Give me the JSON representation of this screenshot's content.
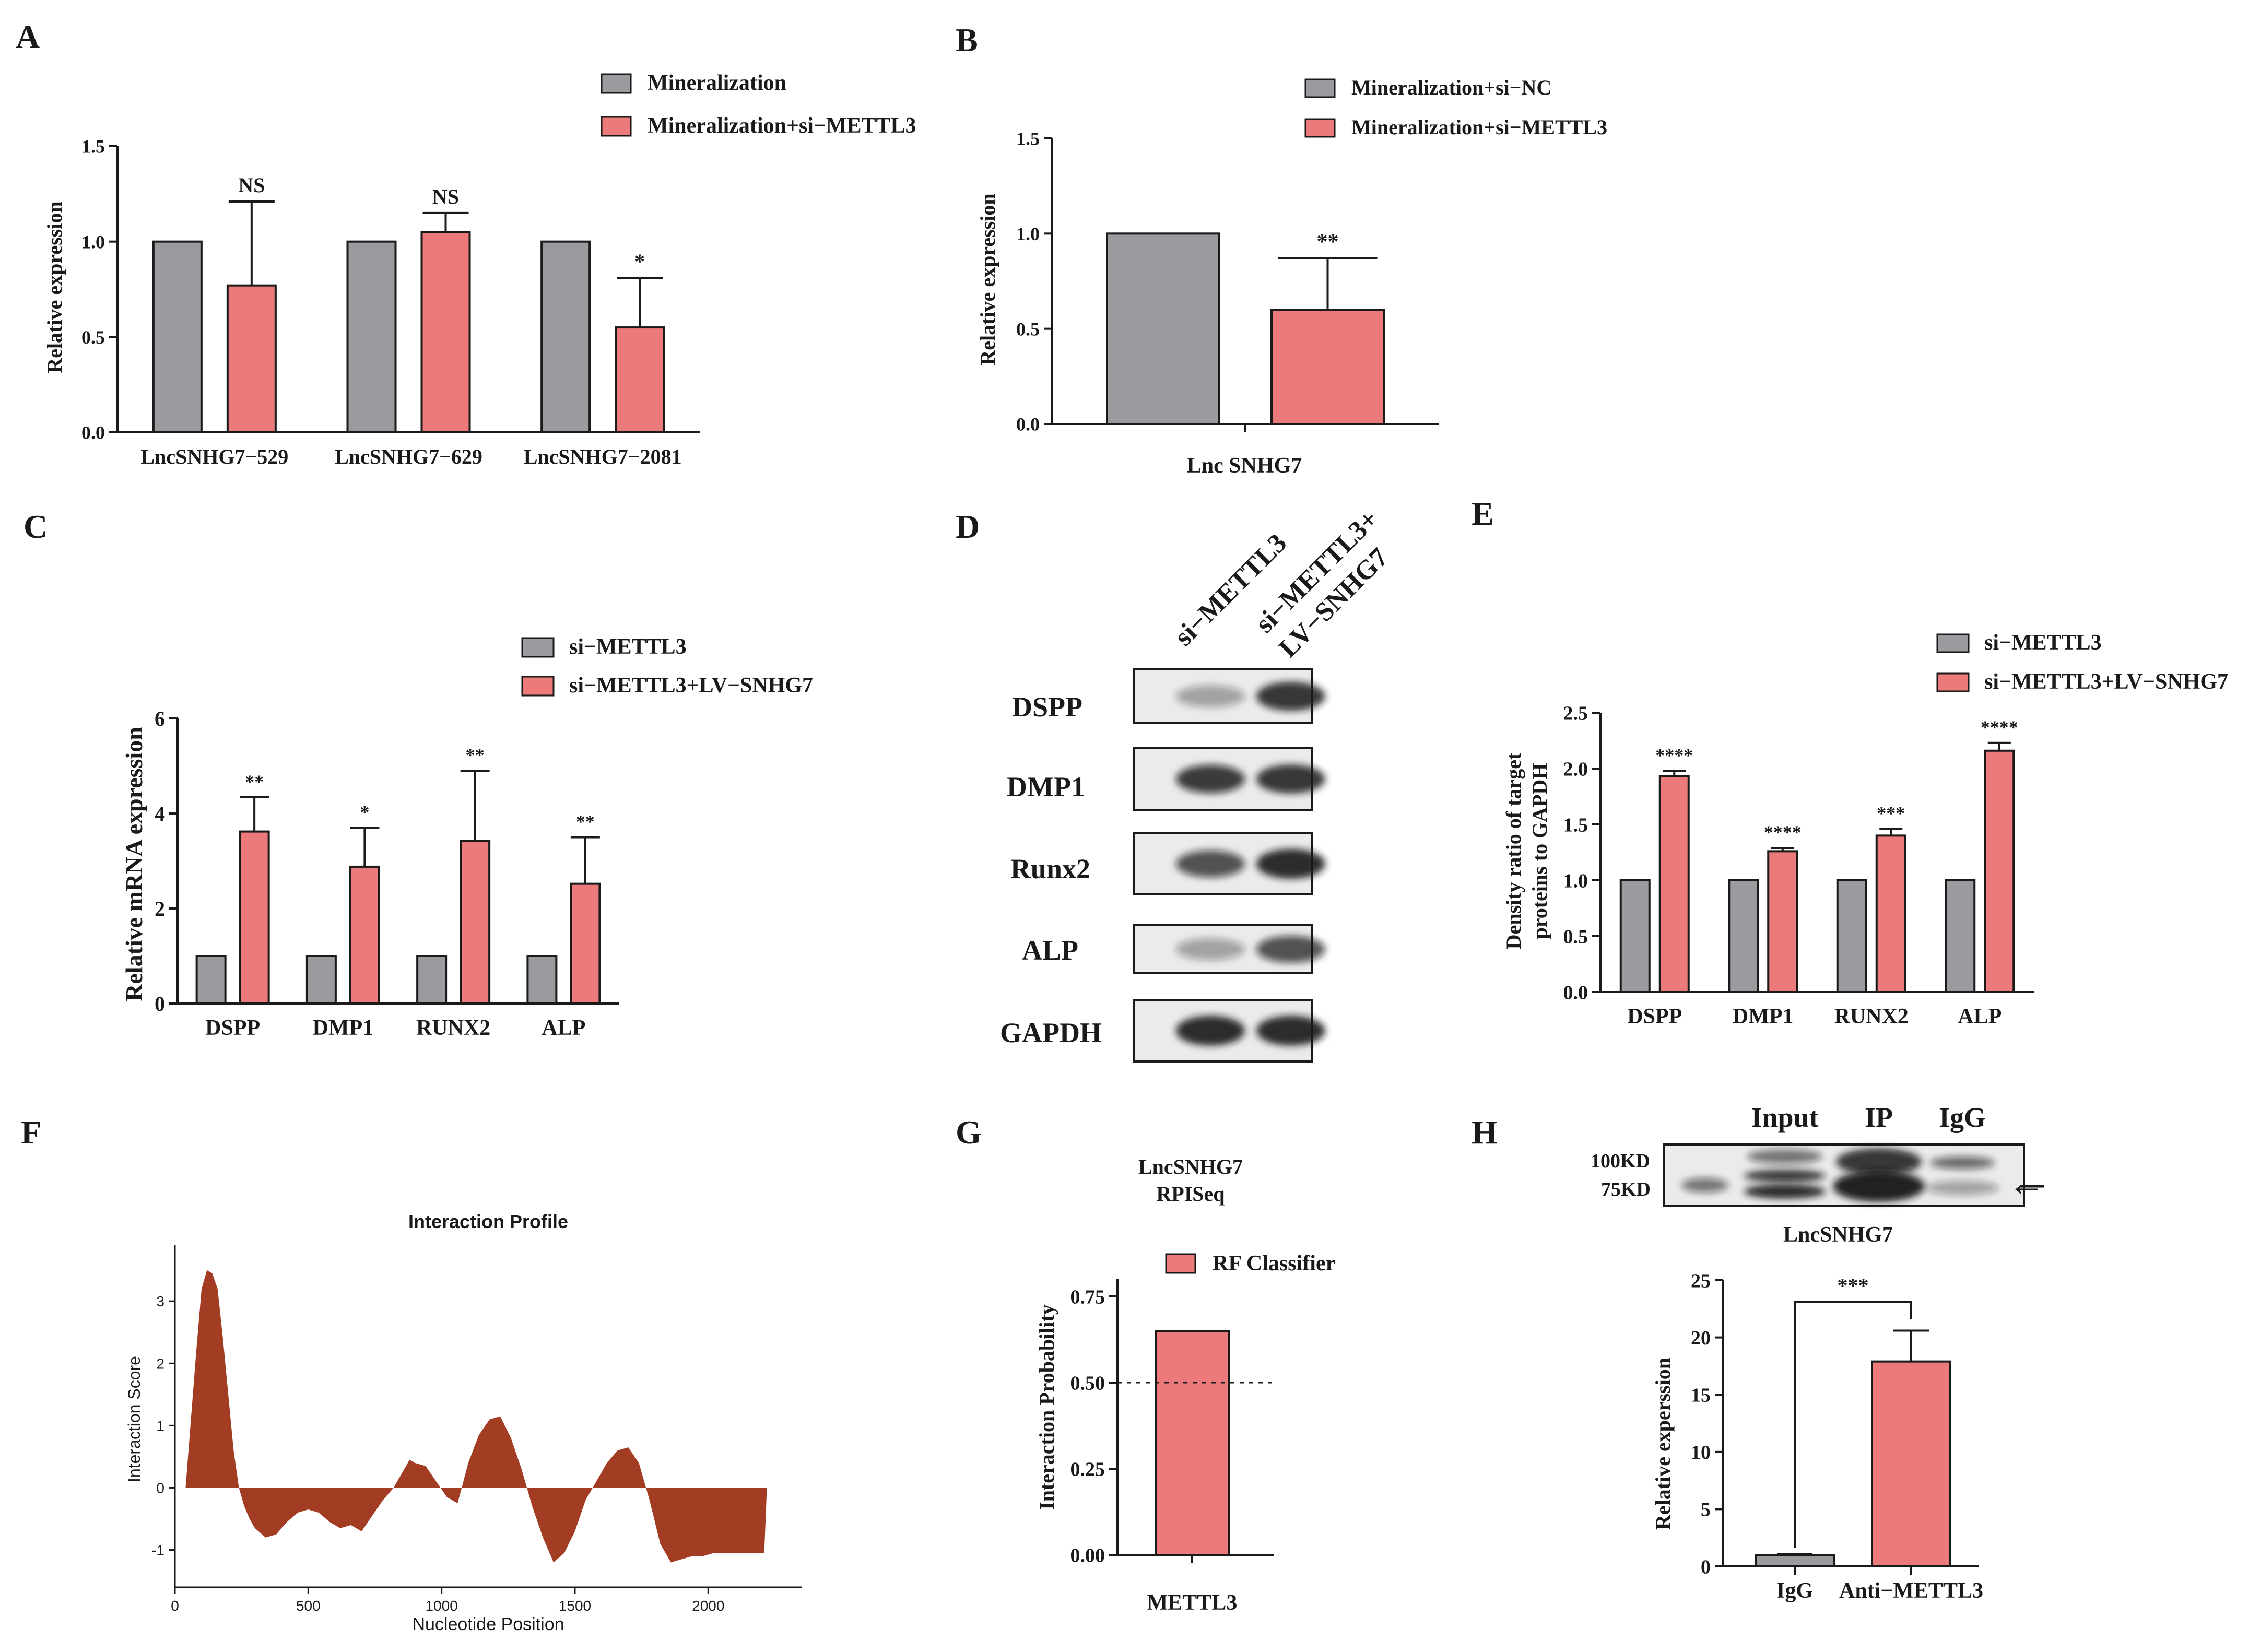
{
  "colors": {
    "gray": "#9a9a9f",
    "red": "#ec7a7b",
    "profile": "#a23c22",
    "axis": "#1a1a1a"
  },
  "panel_letters": {
    "A": "A",
    "B": "B",
    "C": "C",
    "D": "D",
    "E": "E",
    "F": "F",
    "G": "G",
    "H": "H"
  },
  "chart_data": [
    {
      "id": "A",
      "type": "bar",
      "categories": [
        "LncSNHG7−529",
        "LncSNHG7−629",
        "LncSNHG7−2081"
      ],
      "series": [
        {
          "name": "Mineralization",
          "color": "#9a9a9f",
          "values": [
            1.0,
            1.0,
            1.0
          ],
          "errors": [
            null,
            null,
            null
          ]
        },
        {
          "name": "Mineralization+si−METTL3",
          "color": "#ec7a7b",
          "values": [
            0.77,
            1.05,
            0.55
          ],
          "errors": [
            0.44,
            0.1,
            0.26
          ]
        }
      ],
      "significance": [
        "NS",
        "NS",
        "*"
      ],
      "ylabel": "Relative expression",
      "xlabel": "",
      "ylim": [
        0,
        1.5
      ],
      "yticks": [
        0.0,
        0.5,
        1.0,
        1.5
      ],
      "ytick_labels": [
        "0.0",
        "0.5",
        "1.0",
        "1.5"
      ],
      "legend": "top-right",
      "grid": false
    },
    {
      "id": "B",
      "type": "bar",
      "categories": [
        ""
      ],
      "series": [
        {
          "name": "Mineralization+si−NC",
          "color": "#9a9a9f",
          "values": [
            1.0
          ],
          "errors": [
            null
          ]
        },
        {
          "name": "Mineralization+si−METTL3",
          "color": "#ec7a7b",
          "values": [
            0.6
          ],
          "errors": [
            0.27
          ]
        }
      ],
      "significance": [
        "**"
      ],
      "ylabel": "Relative expression",
      "xlabel": "Lnc SNHG7",
      "ylim": [
        0,
        1.5
      ],
      "yticks": [
        0.0,
        0.5,
        1.0,
        1.5
      ],
      "ytick_labels": [
        "0.0",
        "0.5",
        "1.0",
        "1.5"
      ],
      "legend": "top-right",
      "grid": false
    },
    {
      "id": "C",
      "type": "bar",
      "categories": [
        "DSPP",
        "DMP1",
        "RUNX2",
        "ALP"
      ],
      "series": [
        {
          "name": "si−METTL3",
          "color": "#9a9a9f",
          "values": [
            1.0,
            1.0,
            1.0,
            1.0
          ],
          "errors": [
            null,
            null,
            null,
            null
          ]
        },
        {
          "name": "si−METTL3+LV−SNHG7",
          "color": "#ec7a7b",
          "values": [
            3.62,
            2.88,
            3.42,
            2.52
          ],
          "errors": [
            0.72,
            0.82,
            1.48,
            0.98
          ]
        }
      ],
      "significance": [
        "**",
        "*",
        "**",
        "**"
      ],
      "ylabel": "Relative mRNA expression",
      "xlabel": "",
      "ylim": [
        0,
        6
      ],
      "yticks": [
        0,
        2,
        4,
        6
      ],
      "ytick_labels": [
        "0",
        "2",
        "4",
        "6"
      ],
      "legend": "top-right",
      "grid": false
    },
    {
      "id": "E",
      "type": "bar",
      "categories": [
        "DSPP",
        "DMP1",
        "RUNX2",
        "ALP"
      ],
      "series": [
        {
          "name": "si−METTL3",
          "color": "#9a9a9f",
          "values": [
            1.0,
            1.0,
            1.0,
            1.0
          ],
          "errors": [
            null,
            null,
            null,
            null
          ]
        },
        {
          "name": "si−METTL3+LV−SNHG7",
          "color": "#ec7a7b",
          "values": [
            1.93,
            1.26,
            1.4,
            2.16
          ],
          "errors": [
            0.05,
            0.03,
            0.06,
            0.07
          ]
        }
      ],
      "significance": [
        "****",
        "****",
        "***",
        "****"
      ],
      "ylabel": [
        "Density ratio of target",
        "proteins to GAPDH"
      ],
      "xlabel": "",
      "ylim": [
        0,
        2.5
      ],
      "yticks": [
        0.0,
        0.5,
        1.0,
        1.5,
        2.0,
        2.5
      ],
      "ytick_labels": [
        "0.0",
        "0.5",
        "1.0",
        "1.5",
        "2.0",
        "2.5"
      ],
      "legend": "top-right",
      "grid": false
    },
    {
      "id": "F",
      "type": "area",
      "title": "Interaction Profile",
      "xlabel": "Nucleotide Position",
      "ylabel": "Interaction Score",
      "xlim": [
        0,
        2350
      ],
      "ylim": [
        -1.6,
        3.9
      ],
      "xticks": [
        0,
        500,
        1000,
        1500,
        2000
      ],
      "xtick_labels": [
        "0",
        "500",
        "1000",
        "1500",
        "2000"
      ],
      "yticks": [
        -1,
        0,
        1,
        2,
        3
      ],
      "ytick_labels": [
        "-1",
        "0",
        "1",
        "2",
        "3"
      ],
      "x": [
        40,
        60,
        80,
        100,
        120,
        140,
        160,
        180,
        200,
        220,
        240,
        260,
        280,
        300,
        340,
        380,
        420,
        460,
        500,
        540,
        580,
        620,
        660,
        700,
        740,
        780,
        820,
        860,
        880,
        900,
        940,
        980,
        1020,
        1060,
        1100,
        1140,
        1180,
        1220,
        1260,
        1300,
        1340,
        1380,
        1420,
        1460,
        1500,
        1540,
        1580,
        1620,
        1660,
        1700,
        1740,
        1780,
        1820,
        1860,
        1900,
        1940,
        1980,
        2020,
        2060,
        2100,
        2140,
        2180,
        2210,
        2220
      ],
      "y": [
        0.0,
        1.1,
        2.2,
        3.2,
        3.5,
        3.45,
        3.2,
        2.4,
        1.5,
        0.6,
        0.0,
        -0.3,
        -0.5,
        -0.65,
        -0.8,
        -0.75,
        -0.55,
        -0.4,
        -0.35,
        -0.4,
        -0.55,
        -0.65,
        -0.6,
        -0.7,
        -0.45,
        -0.2,
        0.0,
        0.3,
        0.45,
        0.4,
        0.35,
        0.1,
        -0.15,
        -0.25,
        0.4,
        0.85,
        1.1,
        1.15,
        0.8,
        0.3,
        -0.3,
        -0.8,
        -1.2,
        -1.05,
        -0.7,
        -0.2,
        0.1,
        0.4,
        0.6,
        0.65,
        0.4,
        -0.2,
        -0.9,
        -1.2,
        -1.15,
        -1.1,
        -1.1,
        -1.05,
        -1.05,
        -1.05,
        -1.05,
        -1.05,
        -1.05,
        0.0
      ],
      "color": "#a23c22",
      "grid": false
    },
    {
      "id": "G",
      "type": "bar",
      "title": [
        "LncSNHG7",
        "RPISeq"
      ],
      "categories": [
        "METTL3"
      ],
      "series": [
        {
          "name": "RF Classifier",
          "color": "#ec7a7b",
          "values": [
            0.65
          ]
        }
      ],
      "threshold": 0.5,
      "ylabel": "Interaction Probability",
      "xlabel": "",
      "ylim": [
        0,
        0.8
      ],
      "yticks": [
        0.0,
        0.25,
        0.5,
        0.75
      ],
      "ytick_labels": [
        "0.00",
        "0.25",
        "0.50",
        "0.75"
      ],
      "legend": "top-right",
      "grid": false
    },
    {
      "id": "H",
      "type": "bar",
      "title": "LncSNHG7",
      "categories": [
        "IgG",
        "Anti−METTL3"
      ],
      "series": [
        {
          "name": "",
          "colors": [
            "#9a9a9f",
            "#ec7a7b"
          ],
          "values": [
            1.0,
            17.9
          ],
          "errors": [
            0.08,
            2.7
          ]
        }
      ],
      "significance": "***",
      "ylabel": "Relative experssion",
      "xlabel": "",
      "ylim": [
        0,
        25
      ],
      "yticks": [
        0,
        5,
        10,
        15,
        20,
        25
      ],
      "ytick_labels": [
        "0",
        "5",
        "10",
        "15",
        "20",
        "25"
      ],
      "grid": false
    }
  ],
  "blot_D": {
    "lanes": [
      "si−METTL3",
      "si−METTL3+",
      "LV−SNHG7"
    ],
    "rows": [
      "DSPP",
      "DMP1",
      "Runx2",
      "ALP",
      "GAPDH"
    ],
    "intensity": [
      [
        0.35,
        0.85
      ],
      [
        0.8,
        0.85
      ],
      [
        0.7,
        0.9
      ],
      [
        0.35,
        0.7
      ],
      [
        0.9,
        0.9
      ]
    ]
  },
  "blot_H": {
    "lanes": [
      "Input",
      "IP",
      "IgG"
    ],
    "markers": [
      "100KD",
      "75KD"
    ],
    "arrow": "←"
  }
}
